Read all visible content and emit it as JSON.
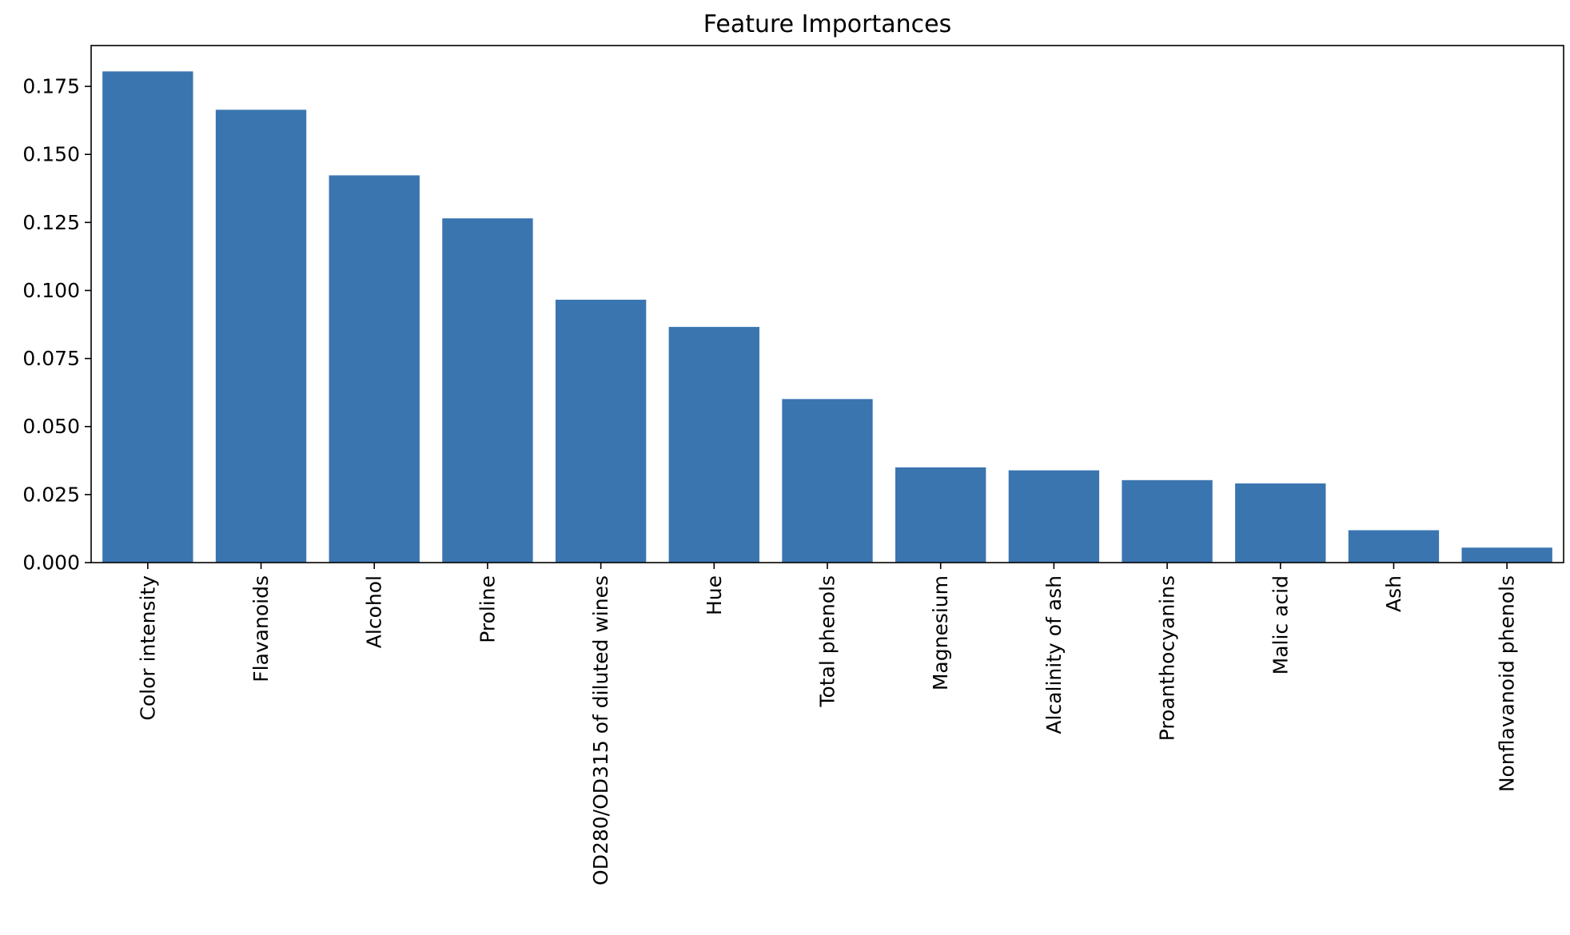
{
  "chart_data": {
    "type": "bar",
    "title": "Feature Importances",
    "xlabel": "",
    "ylabel": "",
    "categories": [
      "Color intensity",
      "Flavanoids",
      "Alcohol",
      "Proline",
      "OD280/OD315 of diluted wines",
      "Hue",
      "Total phenols",
      "Magnesium",
      "Alcalinity of ash",
      "Proanthocyanins",
      "Malic acid",
      "Ash",
      "Nonflavanoid phenols"
    ],
    "values": [
      0.1805,
      0.1664,
      0.1423,
      0.1265,
      0.0966,
      0.0866,
      0.0601,
      0.035,
      0.0339,
      0.0303,
      0.0291,
      0.0119,
      0.0055
    ],
    "ylim": [
      0,
      0.19
    ],
    "yticks": [
      0.0,
      0.025,
      0.05,
      0.075,
      0.1,
      0.125,
      0.15,
      0.175
    ],
    "ytick_labels": [
      "0.000",
      "0.025",
      "0.050",
      "0.075",
      "0.100",
      "0.125",
      "0.150",
      "0.175"
    ],
    "x_tick_rotation": 90,
    "bar_color": "#3a75b0",
    "grid": false,
    "legend": "none"
  }
}
